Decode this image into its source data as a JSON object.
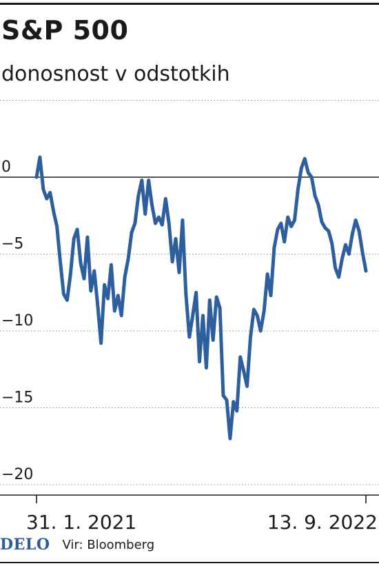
{
  "chart_data": {
    "type": "line",
    "title": "S&P 500",
    "subtitle": "donosnost v odstotkih",
    "xlabel": "",
    "ylabel": "",
    "x_ticks": [
      "31. 1. 2021",
      "13. 9. 2022"
    ],
    "y_ticks": [
      0,
      -5,
      -10,
      -15,
      -20
    ],
    "ylim": [
      -20,
      2
    ],
    "grid": "horizontal-dotted",
    "line_color": "#2d5f9e",
    "series": [
      {
        "values": [
          0,
          1.3,
          -0.8,
          -1.4,
          -1.0,
          -2.2,
          -3.2,
          -5.5,
          -7.6,
          -8.0,
          -6.3,
          -4.0,
          -3.4,
          -5.6,
          -6.6,
          -3.9,
          -7.4,
          -6.1,
          -8.3,
          -10.8,
          -7.0,
          -7.9,
          -5.7,
          -8.7,
          -7.7,
          -9.0,
          -6.5,
          -5.3,
          -3.6,
          -3.0,
          -1.2,
          -0.2,
          -2.4,
          -0.2,
          -1.8,
          -3.0,
          -2.6,
          -3.1,
          -1.4,
          -3.0,
          -5.5,
          -4.0,
          -6.2,
          -2.8,
          -7.6,
          -10.4,
          -9.0,
          -7.5,
          -12.0,
          -9.0,
          -12.4,
          -8.0,
          -10.6,
          -7.8,
          -8.5,
          -14.2,
          -14.5,
          -17.0,
          -14.6,
          -15.2,
          -11.7,
          -12.6,
          -13.6,
          -10.4,
          -8.6,
          -9.0,
          -10.0,
          -8.7,
          -6.3,
          -7.7,
          -4.6,
          -3.4,
          -3.0,
          -4.2,
          -2.6,
          -3.2,
          -2.8,
          -0.8,
          0.6,
          1.2,
          0.3,
          0,
          -1.2,
          -1.8,
          -2.9,
          -3.3,
          -3.5,
          -4.3,
          -5.9,
          -6.5,
          -5.3,
          -4.4,
          -5.0,
          -3.7,
          -2.8,
          -3.5,
          -4.9,
          -6.1
        ]
      }
    ]
  },
  "footer": {
    "logo": "DELO",
    "source": "Vir: Bloomberg"
  }
}
